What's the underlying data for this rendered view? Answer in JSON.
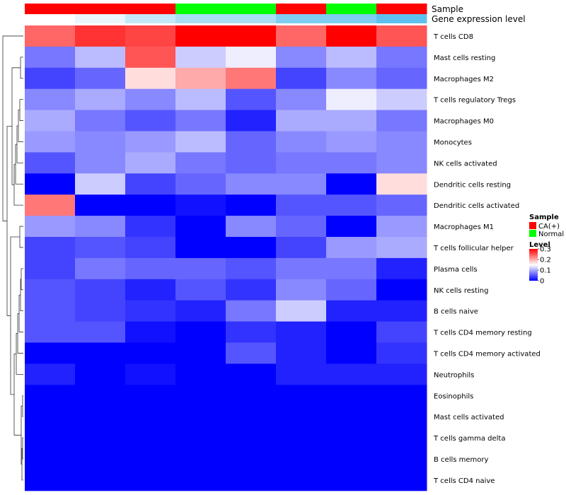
{
  "chart_data": {
    "type": "heatmap",
    "annotation_tracks": [
      {
        "label": "Sample",
        "values": [
          "CA(+)",
          "CA(+)",
          "CA(+)",
          "Normal",
          "Normal",
          "CA(+)",
          "Normal",
          "CA(+)"
        ]
      },
      {
        "label": "Gene expression level",
        "colors": [
          "#ffffff",
          "#eaf6fc",
          "#c4e8f8",
          "#aadef4",
          "#aadef4",
          "#7fcdf0",
          "#7fcdf0",
          "#5ec0ee"
        ]
      }
    ],
    "rows": [
      "T cells CD8",
      "Mast cells resting",
      "Macrophages M2",
      "T cells regulatory  Tregs",
      "Macrophages M0",
      "Monocytes",
      "NK cells activated",
      "Dendritic cells resting",
      "Dendritic cells activated",
      "Macrophages M1",
      "T cells follicular helper",
      "Plasma cells",
      "NK cells resting",
      "B cells naive",
      "T cells CD4 memory resting",
      "T cells CD4 memory activated",
      "Neutrophils",
      "Eosinophils",
      "Mast cells activated",
      "T cells gamma delta",
      "B cells memory",
      "T cells CD4 naive"
    ],
    "values": [
      [
        0.24,
        0.27,
        0.26,
        0.3,
        0.3,
        0.24,
        0.3,
        0.25
      ],
      [
        0.07,
        0.11,
        0.25,
        0.12,
        0.14,
        0.08,
        0.11,
        0.07
      ],
      [
        0.04,
        0.06,
        0.17,
        0.2,
        0.23,
        0.04,
        0.08,
        0.06
      ],
      [
        0.08,
        0.1,
        0.08,
        0.11,
        0.05,
        0.08,
        0.14,
        0.12
      ],
      [
        0.1,
        0.07,
        0.05,
        0.07,
        0.02,
        0.1,
        0.1,
        0.07
      ],
      [
        0.09,
        0.08,
        0.09,
        0.11,
        0.06,
        0.08,
        0.09,
        0.08
      ],
      [
        0.05,
        0.08,
        0.1,
        0.07,
        0.06,
        0.07,
        0.07,
        0.08
      ],
      [
        0.0,
        0.12,
        0.04,
        0.06,
        0.08,
        0.08,
        0.0,
        0.17
      ],
      [
        0.23,
        0.0,
        0.0,
        0.01,
        0.0,
        0.05,
        0.05,
        0.06
      ],
      [
        0.09,
        0.08,
        0.03,
        0.0,
        0.08,
        0.06,
        0.0,
        0.09
      ],
      [
        0.04,
        0.05,
        0.04,
        0.0,
        0.0,
        0.04,
        0.09,
        0.1
      ],
      [
        0.04,
        0.07,
        0.06,
        0.06,
        0.05,
        0.07,
        0.07,
        0.02
      ],
      [
        0.05,
        0.04,
        0.02,
        0.05,
        0.03,
        0.08,
        0.06,
        0.0
      ],
      [
        0.05,
        0.04,
        0.03,
        0.02,
        0.07,
        0.12,
        0.02,
        0.02
      ],
      [
        0.05,
        0.05,
        0.01,
        0.0,
        0.03,
        0.02,
        0.0,
        0.04
      ],
      [
        0.0,
        0.0,
        0.0,
        0.0,
        0.05,
        0.02,
        0.0,
        0.03
      ],
      [
        0.02,
        0.0,
        0.01,
        0.0,
        0.0,
        0.02,
        0.02,
        0.02
      ],
      [
        0.0,
        0.0,
        0.0,
        0.0,
        0.0,
        0.0,
        0.0,
        0.0
      ],
      [
        0.0,
        0.0,
        0.0,
        0.0,
        0.0,
        0.0,
        0.0,
        0.0
      ],
      [
        0.0,
        0.0,
        0.0,
        0.0,
        0.0,
        0.0,
        0.0,
        0.0
      ],
      [
        0.0,
        0.0,
        0.0,
        0.0,
        0.0,
        0.0,
        0.0,
        0.0
      ],
      [
        0.0,
        0.0,
        0.0,
        0.0,
        0.0,
        0.0,
        0.0,
        0.0
      ]
    ],
    "color_scale": {
      "min": 0,
      "mid": 0.15,
      "max": 0.3,
      "low_color": "#0000ff",
      "mid_color": "#ffffff",
      "high_color": "#ff0000"
    },
    "legend": {
      "sample_title": "Sample",
      "sample_entries": [
        {
          "label": "CA(+)",
          "color": "#ff0000"
        },
        {
          "label": "Normal",
          "color": "#00ff00"
        }
      ],
      "level_title": "Level",
      "level_ticks": [
        "0.3",
        "0.2",
        "0.1",
        "0"
      ],
      "placement": "right"
    },
    "row_dendrogram": "left"
  }
}
